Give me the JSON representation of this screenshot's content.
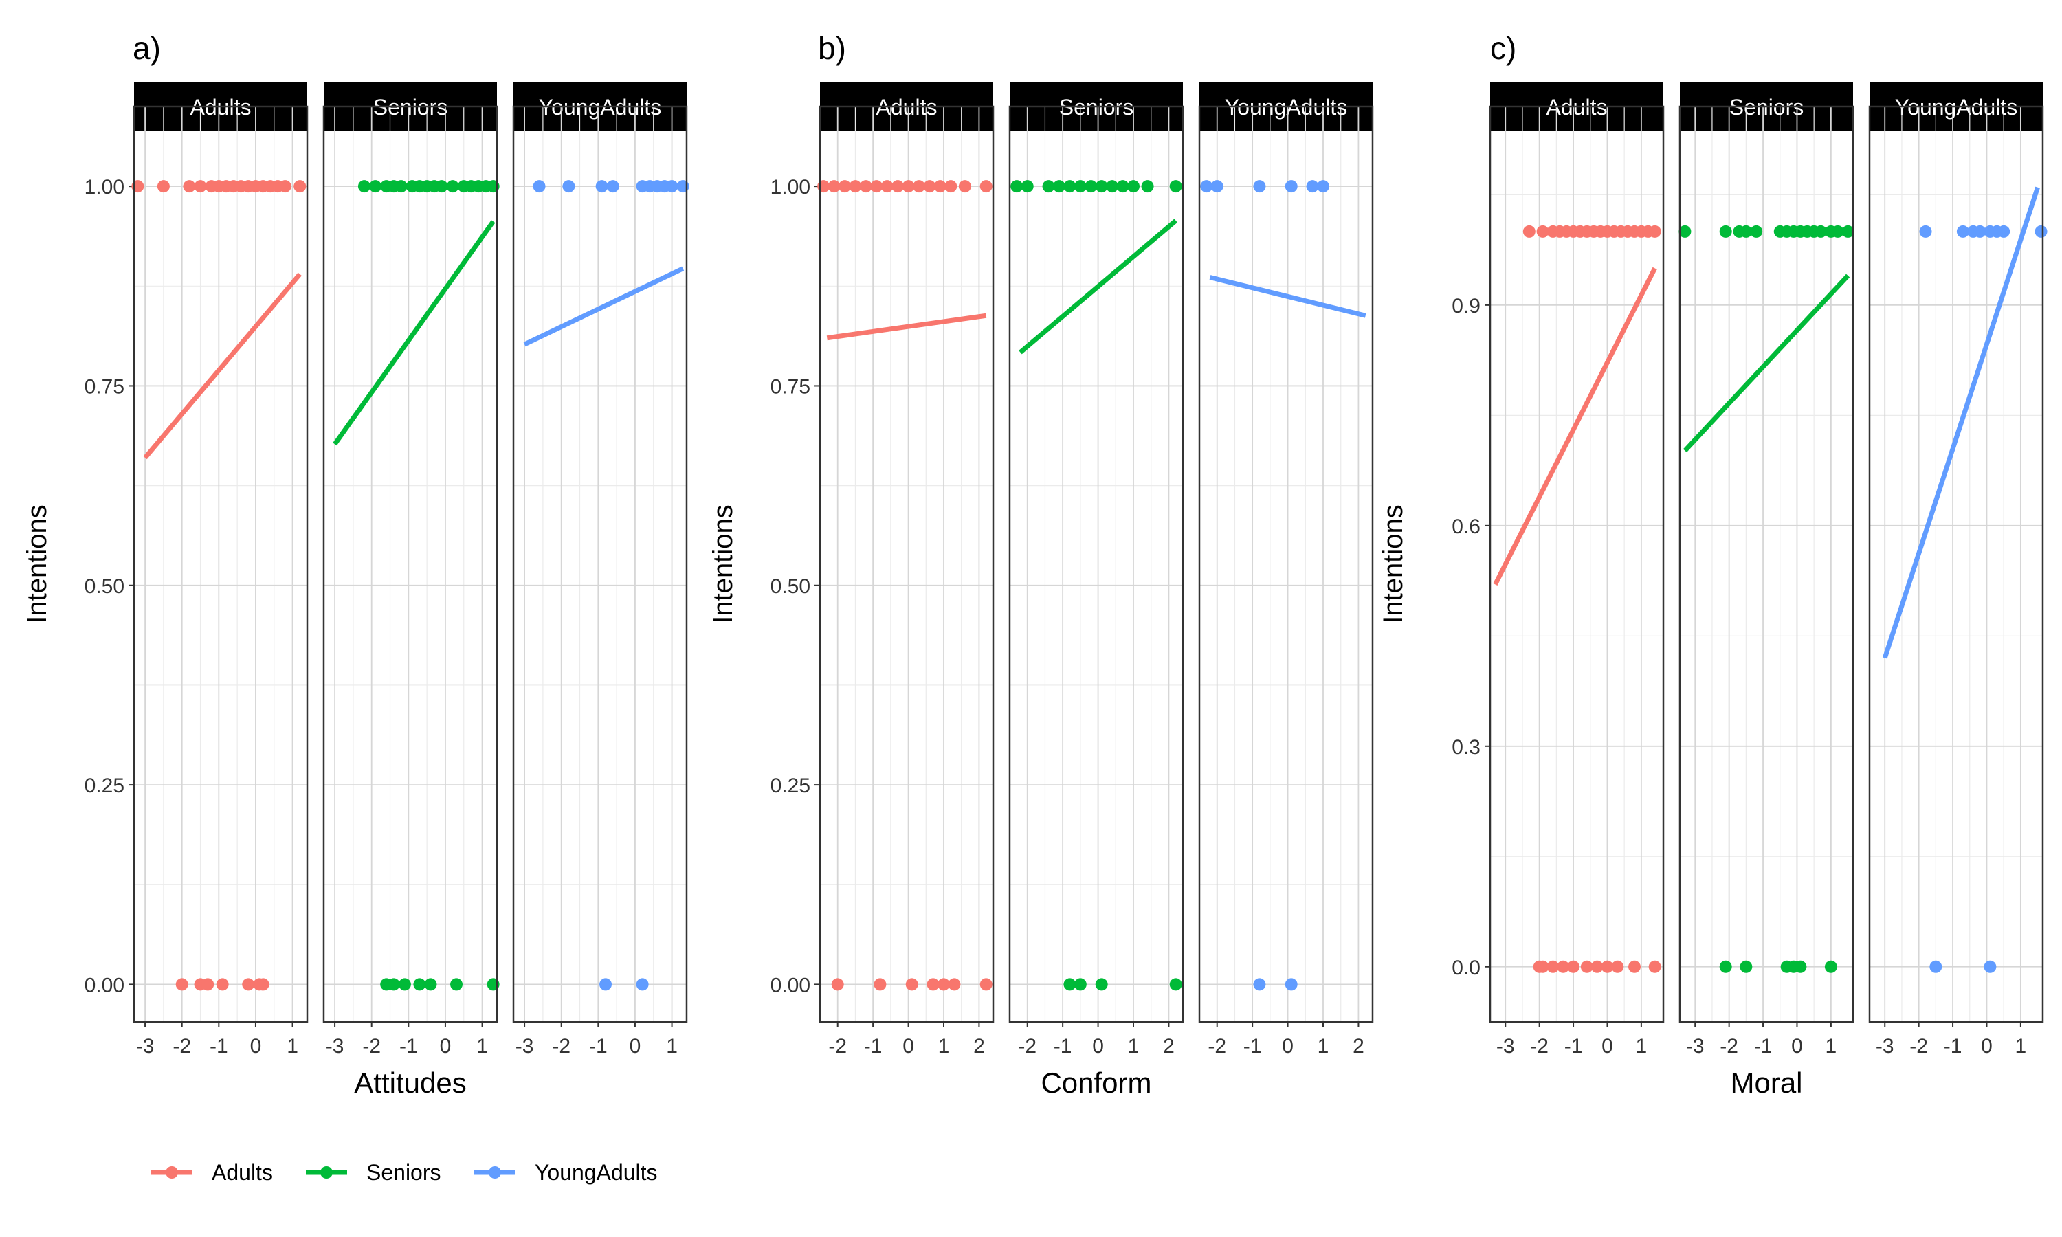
{
  "colors": {
    "Adults": "#F8766D",
    "Seniors": "#00BA38",
    "YoungAdults": "#619CFF"
  },
  "legend": {
    "position": "bottom-left",
    "entries": [
      "Adults",
      "Seniors",
      "YoungAdults"
    ]
  },
  "chart_data": [
    {
      "type": "scatter",
      "panel_label": "a)",
      "xlabel": "Attitudes",
      "ylabel": "Intentions",
      "ylim": [
        -0.047,
        1.1
      ],
      "y_ticks": [
        0,
        0.25,
        0.5,
        0.75,
        1
      ],
      "y_tick_labels": [
        "0.00",
        "0.25",
        "0.50",
        "0.75",
        "1.00"
      ],
      "xlim": [
        -3.3,
        1.4
      ],
      "x_ticks": [
        -3,
        -2,
        -1,
        0,
        1
      ],
      "x_tick_labels": [
        "-3",
        "-2",
        "-1",
        "0",
        "1"
      ],
      "grid": true,
      "facets": [
        {
          "name": "Adults",
          "points": [
            [
              -3.2,
              1
            ],
            [
              -2.5,
              1
            ],
            [
              -1.8,
              1
            ],
            [
              -1.5,
              1
            ],
            [
              -1.2,
              1
            ],
            [
              -1.0,
              1
            ],
            [
              -0.8,
              1
            ],
            [
              -0.6,
              1
            ],
            [
              -0.4,
              1
            ],
            [
              -0.2,
              1
            ],
            [
              0.0,
              1
            ],
            [
              0.2,
              1
            ],
            [
              0.4,
              1
            ],
            [
              0.6,
              1
            ],
            [
              0.8,
              1
            ],
            [
              1.2,
              1
            ],
            [
              -2.0,
              0
            ],
            [
              -1.5,
              0
            ],
            [
              -1.3,
              0
            ],
            [
              -0.9,
              0
            ],
            [
              -0.2,
              0
            ],
            [
              0.1,
              0
            ],
            [
              0.2,
              0
            ]
          ],
          "fit": [
            [
              -3.0,
              0.66
            ],
            [
              1.2,
              0.89
            ]
          ]
        },
        {
          "name": "Seniors",
          "points": [
            [
              -2.2,
              1
            ],
            [
              -1.9,
              1
            ],
            [
              -1.6,
              1
            ],
            [
              -1.4,
              1
            ],
            [
              -1.2,
              1
            ],
            [
              -0.9,
              1
            ],
            [
              -0.7,
              1
            ],
            [
              -0.5,
              1
            ],
            [
              -0.3,
              1
            ],
            [
              -0.1,
              1
            ],
            [
              0.2,
              1
            ],
            [
              0.5,
              1
            ],
            [
              0.7,
              1
            ],
            [
              0.9,
              1
            ],
            [
              1.1,
              1
            ],
            [
              1.3,
              1
            ],
            [
              -1.6,
              0
            ],
            [
              -1.4,
              0
            ],
            [
              -1.1,
              0
            ],
            [
              -0.7,
              0
            ],
            [
              -0.4,
              0
            ],
            [
              0.3,
              0
            ],
            [
              1.3,
              0
            ]
          ],
          "fit": [
            [
              -3.0,
              0.677
            ],
            [
              1.3,
              0.956
            ]
          ]
        },
        {
          "name": "YoungAdults",
          "points": [
            [
              -2.6,
              1
            ],
            [
              -1.8,
              1
            ],
            [
              -0.9,
              1
            ],
            [
              -0.6,
              1
            ],
            [
              0.2,
              1
            ],
            [
              0.4,
              1
            ],
            [
              0.6,
              1
            ],
            [
              0.8,
              1
            ],
            [
              1.0,
              1
            ],
            [
              1.3,
              1
            ],
            [
              -0.8,
              0
            ],
            [
              0.2,
              0
            ]
          ],
          "fit": [
            [
              -3.0,
              0.802
            ],
            [
              1.3,
              0.897
            ]
          ]
        }
      ]
    },
    {
      "type": "scatter",
      "panel_label": "b)",
      "xlabel": "Conform",
      "ylabel": "Intentions",
      "ylim": [
        -0.047,
        1.1
      ],
      "y_ticks": [
        0,
        0.25,
        0.5,
        0.75,
        1
      ],
      "y_tick_labels": [
        "0.00",
        "0.25",
        "0.50",
        "0.75",
        "1.00"
      ],
      "xlim": [
        -2.5,
        2.4
      ],
      "x_ticks": [
        -2,
        -1,
        0,
        1,
        2
      ],
      "x_tick_labels": [
        "-2",
        "-1",
        "0",
        "1",
        "2"
      ],
      "grid": true,
      "facets": [
        {
          "name": "Adults",
          "points": [
            [
              -2.4,
              1
            ],
            [
              -2.1,
              1
            ],
            [
              -1.8,
              1
            ],
            [
              -1.5,
              1
            ],
            [
              -1.2,
              1
            ],
            [
              -0.9,
              1
            ],
            [
              -0.6,
              1
            ],
            [
              -0.3,
              1
            ],
            [
              0.0,
              1
            ],
            [
              0.3,
              1
            ],
            [
              0.6,
              1
            ],
            [
              0.9,
              1
            ],
            [
              1.2,
              1
            ],
            [
              1.6,
              1
            ],
            [
              2.2,
              1
            ],
            [
              -2.0,
              0
            ],
            [
              -0.8,
              0
            ],
            [
              0.1,
              0
            ],
            [
              0.7,
              0
            ],
            [
              1.0,
              0
            ],
            [
              1.3,
              0
            ],
            [
              2.2,
              0
            ]
          ],
          "fit": [
            [
              -2.3,
              0.81
            ],
            [
              2.2,
              0.838
            ]
          ]
        },
        {
          "name": "Seniors",
          "points": [
            [
              -2.3,
              1
            ],
            [
              -2.0,
              1
            ],
            [
              -1.4,
              1
            ],
            [
              -1.1,
              1
            ],
            [
              -0.8,
              1
            ],
            [
              -0.5,
              1
            ],
            [
              -0.2,
              1
            ],
            [
              0.1,
              1
            ],
            [
              0.4,
              1
            ],
            [
              0.7,
              1
            ],
            [
              1.0,
              1
            ],
            [
              1.4,
              1
            ],
            [
              2.2,
              1
            ],
            [
              -0.8,
              0
            ],
            [
              -0.5,
              0
            ],
            [
              0.1,
              0
            ],
            [
              2.2,
              0
            ]
          ],
          "fit": [
            [
              -2.2,
              0.792
            ],
            [
              2.2,
              0.957
            ]
          ]
        },
        {
          "name": "YoungAdults",
          "points": [
            [
              -2.3,
              1
            ],
            [
              -2.0,
              1
            ],
            [
              -0.8,
              1
            ],
            [
              0.1,
              1
            ],
            [
              0.7,
              1
            ],
            [
              1.0,
              1
            ],
            [
              -0.8,
              0
            ],
            [
              0.1,
              0
            ]
          ],
          "fit": [
            [
              -2.2,
              0.886
            ],
            [
              2.2,
              0.838
            ]
          ]
        }
      ]
    },
    {
      "type": "scatter",
      "panel_label": "c)",
      "xlabel": "Moral",
      "ylabel": "Intentions",
      "ylim": [
        -0.075,
        1.17
      ],
      "y_ticks": [
        0,
        0.3,
        0.6,
        0.9
      ],
      "y_tick_labels": [
        "0.0",
        "0.3",
        "0.6",
        "0.9"
      ],
      "xlim": [
        -3.45,
        1.65
      ],
      "x_ticks": [
        -3,
        -2,
        -1,
        0,
        1
      ],
      "x_tick_labels": [
        "-3",
        "-2",
        "-1",
        "0",
        "1"
      ],
      "grid": true,
      "facets": [
        {
          "name": "Adults",
          "points": [
            [
              -2.3,
              1
            ],
            [
              -1.9,
              1
            ],
            [
              -1.6,
              1
            ],
            [
              -1.4,
              1
            ],
            [
              -1.2,
              1
            ],
            [
              -1.0,
              1
            ],
            [
              -0.8,
              1
            ],
            [
              -0.6,
              1
            ],
            [
              -0.4,
              1
            ],
            [
              -0.2,
              1
            ],
            [
              0.0,
              1
            ],
            [
              0.2,
              1
            ],
            [
              0.4,
              1
            ],
            [
              0.6,
              1
            ],
            [
              0.8,
              1
            ],
            [
              1.0,
              1
            ],
            [
              1.2,
              1
            ],
            [
              1.4,
              1
            ],
            [
              -2.0,
              0
            ],
            [
              -1.9,
              0
            ],
            [
              -1.6,
              0
            ],
            [
              -1.3,
              0
            ],
            [
              -1.0,
              0
            ],
            [
              -0.6,
              0
            ],
            [
              -0.3,
              0
            ],
            [
              0.0,
              0
            ],
            [
              0.3,
              0
            ],
            [
              0.8,
              0
            ],
            [
              1.4,
              0
            ]
          ],
          "fit": [
            [
              -3.3,
              0.52
            ],
            [
              1.4,
              0.95
            ]
          ]
        },
        {
          "name": "Seniors",
          "points": [
            [
              -3.3,
              1
            ],
            [
              -2.1,
              1
            ],
            [
              -1.7,
              1
            ],
            [
              -1.5,
              1
            ],
            [
              -1.2,
              1
            ],
            [
              -0.5,
              1
            ],
            [
              -0.3,
              1
            ],
            [
              -0.1,
              1
            ],
            [
              0.1,
              1
            ],
            [
              0.3,
              1
            ],
            [
              0.5,
              1
            ],
            [
              0.7,
              1
            ],
            [
              1.0,
              1
            ],
            [
              1.2,
              1
            ],
            [
              1.5,
              1
            ],
            [
              -2.1,
              0
            ],
            [
              -1.5,
              0
            ],
            [
              -0.3,
              0
            ],
            [
              -0.1,
              0
            ],
            [
              0.1,
              0
            ],
            [
              1.0,
              0
            ]
          ],
          "fit": [
            [
              -3.3,
              0.702
            ],
            [
              1.5,
              0.94
            ]
          ]
        },
        {
          "name": "YoungAdults",
          "points": [
            [
              -1.8,
              1
            ],
            [
              -0.7,
              1
            ],
            [
              -0.4,
              1
            ],
            [
              -0.2,
              1
            ],
            [
              0.1,
              1
            ],
            [
              0.3,
              1
            ],
            [
              0.5,
              1
            ],
            [
              1.6,
              1
            ],
            [
              -1.5,
              0
            ],
            [
              0.1,
              0
            ]
          ],
          "fit": [
            [
              -3.0,
              0.42
            ],
            [
              1.5,
              1.06
            ]
          ]
        }
      ]
    }
  ]
}
